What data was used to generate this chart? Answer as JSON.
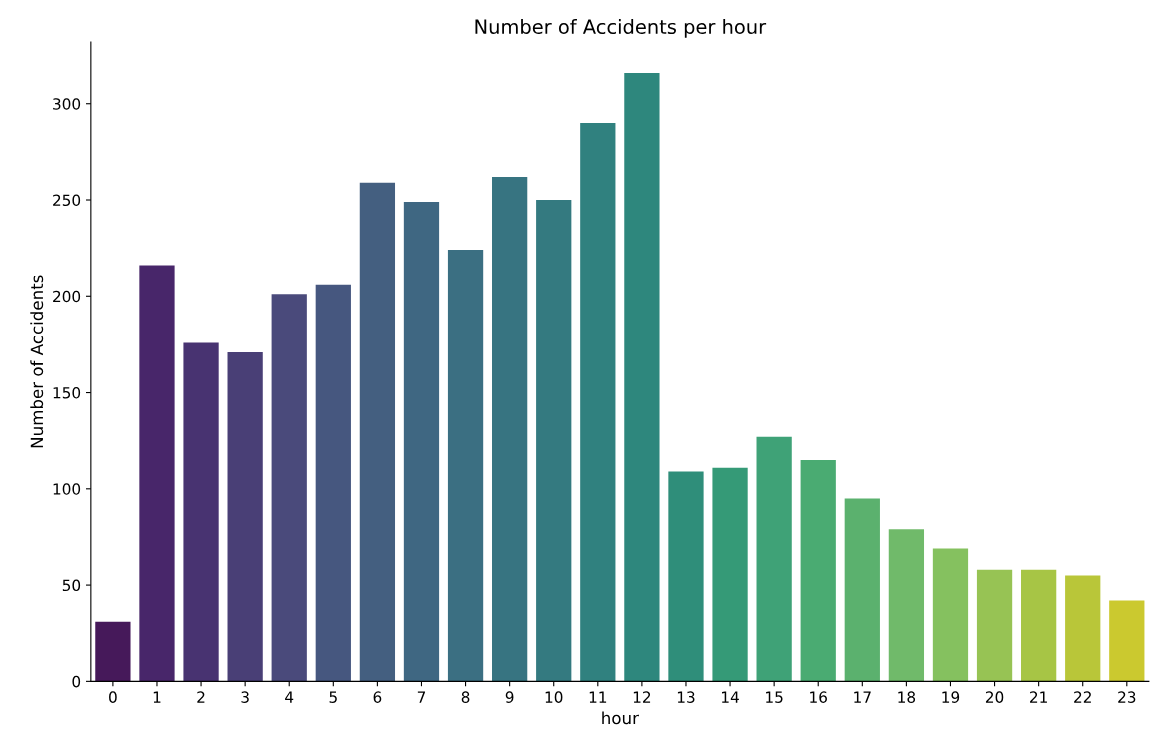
{
  "chart_data": {
    "type": "bar",
    "title": "Number of Accidents per hour",
    "xlabel": "hour",
    "ylabel": "Number of Accidents",
    "categories": [
      "0",
      "1",
      "2",
      "3",
      "4",
      "5",
      "6",
      "7",
      "8",
      "9",
      "10",
      "11",
      "12",
      "13",
      "14",
      "15",
      "16",
      "17",
      "18",
      "19",
      "20",
      "21",
      "22",
      "23"
    ],
    "values": [
      31,
      216,
      176,
      171,
      201,
      206,
      259,
      249,
      224,
      262,
      250,
      290,
      316,
      109,
      111,
      127,
      115,
      95,
      79,
      69,
      58,
      58,
      55,
      42
    ],
    "colors": [
      "#46195a",
      "#48266a",
      "#483371",
      "#493f76",
      "#4a4a7b",
      "#46577f",
      "#445f80",
      "#3f6782",
      "#3b6f82",
      "#377481",
      "#347a80",
      "#30817f",
      "#2e877d",
      "#2f8e7a",
      "#359a77",
      "#3fa277",
      "#4aab72",
      "#5bb16e",
      "#70ba6a",
      "#85c15f",
      "#97c354",
      "#a7c545",
      "#b9c639",
      "#cbc92f"
    ],
    "ylim": [
      0,
      332
    ],
    "yticks": [
      0,
      50,
      100,
      150,
      200,
      250,
      300
    ],
    "grid": false,
    "legend": false
  }
}
